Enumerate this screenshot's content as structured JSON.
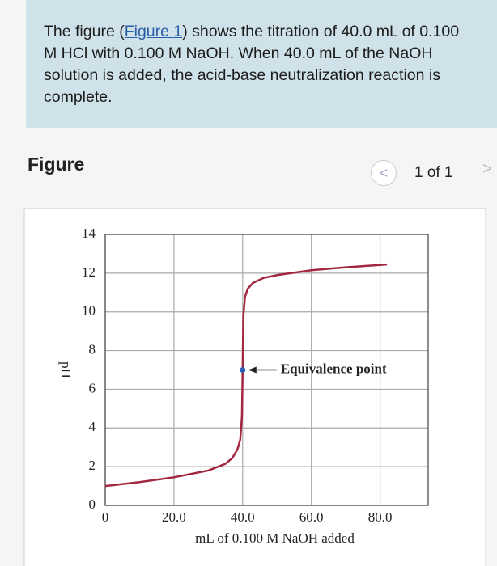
{
  "problem": {
    "part1": "The figure (",
    "link": "Figure 1",
    "part2": ") shows the titration of 40.0 mL of 0.100 M HCl with 0.100 M NaOH. When 40.0 mL of the NaOH solution is added, the acid-base neutralization reaction is complete."
  },
  "figure_heading": "Figure",
  "pager": "1 of 1",
  "chart_data": {
    "type": "line",
    "xlabel": "mL of 0.100 M NaOH added",
    "ylabel": "pH",
    "x": [
      0,
      10,
      20,
      30,
      35,
      37,
      38.5,
      39.3,
      39.8,
      40,
      40.2,
      40.7,
      41.5,
      43,
      46,
      50,
      60,
      70,
      82
    ],
    "series": [
      {
        "name": "pH",
        "color": "#a3283f",
        "values": [
          1.0,
          1.2,
          1.45,
          1.8,
          2.15,
          2.45,
          2.9,
          3.4,
          4.6,
          7.0,
          9.8,
          10.8,
          11.2,
          11.5,
          11.75,
          11.9,
          12.15,
          12.3,
          12.45
        ]
      }
    ],
    "annotation": {
      "text": "Equivalence point",
      "x": 40,
      "y": 7,
      "color": "#2c5fb5"
    },
    "xlim": [
      0,
      94
    ],
    "ylim": [
      0,
      14
    ],
    "xticks": [
      0,
      {
        "value": 20,
        "label": "20.0"
      },
      {
        "value": 40,
        "label": "40.0"
      },
      {
        "value": 60,
        "label": "60.0"
      },
      {
        "value": 80,
        "label": "80.0"
      }
    ],
    "yticks": [
      0,
      2,
      4,
      6,
      8,
      10,
      12,
      14
    ],
    "grid": true
  }
}
